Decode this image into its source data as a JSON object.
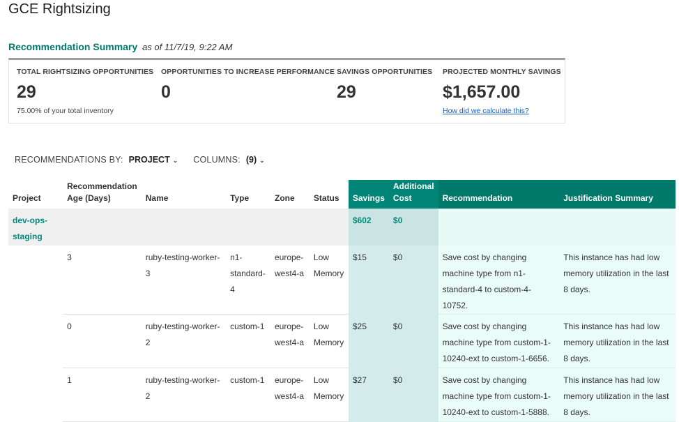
{
  "page": {
    "title": "GCE Rightsizing"
  },
  "summary": {
    "heading": "Recommendation Summary",
    "as_of": "as of 11/7/19, 9:22 AM",
    "metrics": [
      {
        "label": "TOTAL RIGHTSIZING OPPORTUNITIES",
        "value": "29",
        "sub": "75.00% of your total inventory"
      },
      {
        "label": "OPPORTUNITIES TO INCREASE PERFORMANCE",
        "value": "0"
      },
      {
        "label": "SAVINGS OPPORTUNITIES",
        "value": "29"
      },
      {
        "label": "PROJECTED MONTHLY SAVINGS",
        "value": "$1,657.00",
        "link": "How did we calculate this?"
      }
    ]
  },
  "filters": {
    "by_label": "RECOMMENDATIONS BY:",
    "by_value": "PROJECT",
    "columns_label": "COLUMNS:",
    "columns_value": "(9)"
  },
  "table": {
    "headers": {
      "project": "Project",
      "age_line1": "Recommendation",
      "age_line2": "Age (Days)",
      "name": "Name",
      "type": "Type",
      "zone": "Zone",
      "status": "Status",
      "savings": "Savings",
      "additional_cost_line1": "Additional",
      "additional_cost_line2": "Cost",
      "recommendation": "Recommendation",
      "justification": "Justification Summary"
    },
    "group": {
      "project": "dev-ops-staging",
      "savings": "$602",
      "additional_cost": "$0"
    },
    "rows": [
      {
        "age": "3",
        "name": "ruby-testing-worker-3",
        "type": "n1-standard-4",
        "zone": "europe-west4-a",
        "status": "Low Memory",
        "savings": "$15",
        "additional_cost": "$0",
        "recommendation": "Save cost by changing machine type from n1-standard-4 to custom-4-10752.",
        "justification": "This instance has had low memory utilization in the last 8 days."
      },
      {
        "age": "0",
        "name": "ruby-testing-worker-2",
        "type": "custom-1",
        "zone": "europe-west4-a",
        "status": "Low Memory",
        "savings": "$25",
        "additional_cost": "$0",
        "recommendation": "Save cost by changing machine type from custom-1-10240-ext to custom-1-6656.",
        "justification": "This instance has had low memory utilization in the last 8 days."
      },
      {
        "age": "1",
        "name": "ruby-testing-worker-2",
        "type": "custom-1",
        "zone": "europe-west4-a",
        "status": "Low Memory",
        "savings": "$27",
        "additional_cost": "$0",
        "recommendation": "Save cost by changing machine type from custom-1-10240-ext to custom-1-5888.",
        "justification": "This instance has had low memory utilization in the last 8 days."
      }
    ]
  }
}
